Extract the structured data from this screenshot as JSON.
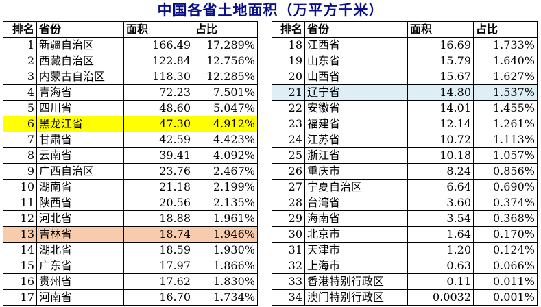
{
  "title": "中国各省土地面积（万平方千米）",
  "headers": {
    "rank": "排名",
    "province": "省份",
    "area": "面积",
    "share": "占比"
  },
  "colors": {
    "title": "#0a0f87",
    "highlight_yellow": "#ffff00",
    "highlight_peach": "#f8cbad",
    "highlight_blue": "#deeef5"
  },
  "left_rows": [
    {
      "rank": "1",
      "province": "新疆自治区",
      "area": "166.49",
      "share": "17.289%"
    },
    {
      "rank": "2",
      "province": "西藏自治区",
      "area": "122.84",
      "share": "12.756%"
    },
    {
      "rank": "3",
      "province": "内蒙古自治区",
      "area": "118.30",
      "share": "12.285%"
    },
    {
      "rank": "4",
      "province": "青海省",
      "area": "72.23",
      "share": "7.501%"
    },
    {
      "rank": "5",
      "province": "四川省",
      "area": "48.60",
      "share": "5.047%"
    },
    {
      "rank": "6",
      "province": "黑龙江省",
      "area": "47.30",
      "share": "4.912%",
      "highlight": "#ffff00"
    },
    {
      "rank": "7",
      "province": "甘肃省",
      "area": "42.59",
      "share": "4.423%"
    },
    {
      "rank": "8",
      "province": "云南省",
      "area": "39.41",
      "share": "4.092%"
    },
    {
      "rank": "9",
      "province": "广西自治区",
      "area": "23.76",
      "share": "2.467%"
    },
    {
      "rank": "10",
      "province": "湖南省",
      "area": "21.18",
      "share": "2.199%"
    },
    {
      "rank": "11",
      "province": "陕西省",
      "area": "20.56",
      "share": "2.135%"
    },
    {
      "rank": "12",
      "province": "河北省",
      "area": "18.88",
      "share": "1.961%"
    },
    {
      "rank": "13",
      "province": "吉林省",
      "area": "18.74",
      "share": "1.946%",
      "highlight": "#f8cbad"
    },
    {
      "rank": "14",
      "province": "湖北省",
      "area": "18.59",
      "share": "1.930%"
    },
    {
      "rank": "15",
      "province": "广东省",
      "area": "17.97",
      "share": "1.866%"
    },
    {
      "rank": "16",
      "province": "贵州省",
      "area": "17.62",
      "share": "1.830%"
    },
    {
      "rank": "17",
      "province": "河南省",
      "area": "16.70",
      "share": "1.734%"
    }
  ],
  "right_rows": [
    {
      "rank": "18",
      "province": "江西省",
      "area": "16.69",
      "share": "1.733%"
    },
    {
      "rank": "19",
      "province": "山东省",
      "area": "15.79",
      "share": "1.640%"
    },
    {
      "rank": "20",
      "province": "山西省",
      "area": "15.67",
      "share": "1.627%"
    },
    {
      "rank": "21",
      "province": "辽宁省",
      "area": "14.80",
      "share": "1.537%",
      "highlight": "#deeef5"
    },
    {
      "rank": "22",
      "province": "安徽省",
      "area": "14.01",
      "share": "1.455%"
    },
    {
      "rank": "23",
      "province": "福建省",
      "area": "12.14",
      "share": "1.261%"
    },
    {
      "rank": "24",
      "province": "江苏省",
      "area": "10.72",
      "share": "1.113%"
    },
    {
      "rank": "25",
      "province": "浙江省",
      "area": "10.18",
      "share": "1.057%"
    },
    {
      "rank": "26",
      "province": "重庆市",
      "area": "8.24",
      "share": "0.856%"
    },
    {
      "rank": "27",
      "province": "宁夏自治区",
      "area": "6.64",
      "share": "0.690%"
    },
    {
      "rank": "28",
      "province": "台湾省",
      "area": "3.60",
      "share": "0.374%"
    },
    {
      "rank": "29",
      "province": "海南省",
      "area": "3.54",
      "share": "0.368%"
    },
    {
      "rank": "30",
      "province": "北京市",
      "area": "1.64",
      "share": "0.170%"
    },
    {
      "rank": "31",
      "province": "天津市",
      "area": "1.20",
      "share": "0.124%"
    },
    {
      "rank": "32",
      "province": "上海市",
      "area": "0.63",
      "share": "0.066%"
    },
    {
      "rank": "33",
      "province": "香港特别行政区",
      "area": "0.11",
      "share": "0.011%"
    },
    {
      "rank": "34",
      "province": "澳门特别行政区",
      "area": "0.0032",
      "share": "0.001%"
    }
  ]
}
